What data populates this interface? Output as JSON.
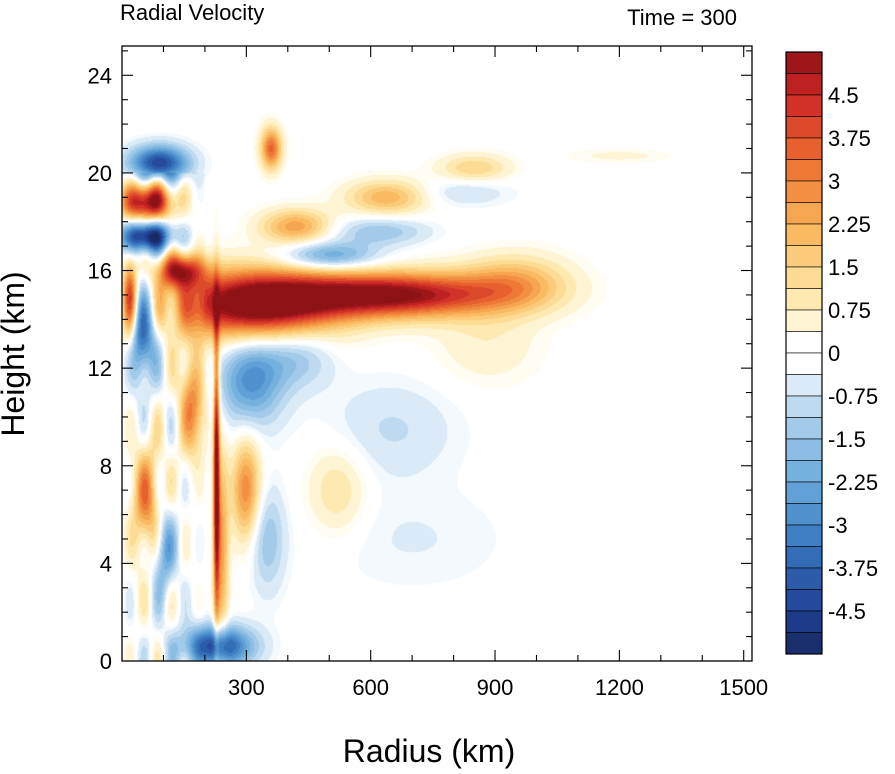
{
  "chart_data": {
    "type": "heatmap",
    "title_left": "Radial Velocity",
    "title_right": "Time = 300",
    "xlabel": "Radius (km)",
    "ylabel": "Height (km)",
    "xlim": [
      0,
      1520
    ],
    "ylim": [
      0,
      25.2
    ],
    "xticks": [
      300,
      600,
      900,
      1200,
      1500
    ],
    "yticks": [
      0,
      4,
      8,
      12,
      16,
      20,
      24
    ],
    "x_minor_step": 100,
    "y_minor_step": 1,
    "colorbar": {
      "min": -5.25,
      "max": 5.25,
      "step": 0.375,
      "labels": [
        "4.5",
        "3.75",
        "3",
        "2.25",
        "1.5",
        "0.75",
        "0",
        "-0.75",
        "-1.5",
        "-2.25",
        "-3",
        "-3.75",
        "-4.5"
      ],
      "label_values": [
        4.5,
        3.75,
        3,
        2.25,
        1.5,
        0.75,
        0,
        -0.75,
        -1.5,
        -2.25,
        -3,
        -3.75,
        -4.5
      ]
    },
    "features": [
      {
        "name": "upper-outflow-core",
        "x": 320,
        "y": 14.6,
        "value": 6.0,
        "sx": 140,
        "sy": 1.0
      },
      {
        "name": "upper-outflow-tail",
        "x": 650,
        "y": 15.0,
        "value": 5.5,
        "sx": 180,
        "sy": 0.65
      },
      {
        "name": "outflow-outer-edge",
        "x": 950,
        "y": 15.5,
        "value": 2.0,
        "sx": 90,
        "sy": 0.8
      },
      {
        "name": "outflow-shoulder",
        "x": 880,
        "y": 13.0,
        "value": 0.7,
        "sx": 90,
        "sy": 1.2
      },
      {
        "name": "inner-inflow-below-outflow",
        "x": 310,
        "y": 11.5,
        "value": -2.8,
        "sx": 55,
        "sy": 1.3
      },
      {
        "name": "inner-inflow-below-outflow-2",
        "x": 420,
        "y": 12.5,
        "value": -1.5,
        "sx": 60,
        "sy": 0.9
      },
      {
        "name": "core-red-top",
        "x": 60,
        "y": 18.8,
        "value": 5.5,
        "sx": 45,
        "sy": 0.55
      },
      {
        "name": "core-blue-top",
        "x": 60,
        "y": 17.4,
        "value": -5.5,
        "sx": 45,
        "sy": 0.45
      },
      {
        "name": "core-blue-upper",
        "x": 90,
        "y": 20.4,
        "value": -4.5,
        "sx": 50,
        "sy": 0.5
      },
      {
        "name": "core-red-band",
        "x": 140,
        "y": 16.0,
        "value": 4.5,
        "sx": 40,
        "sy": 0.5
      },
      {
        "name": "core-blue-mid",
        "x": 50,
        "y": 13.5,
        "value": -4.0,
        "sx": 22,
        "sy": 1.4
      },
      {
        "name": "core-red-mid",
        "x": 170,
        "y": 10.5,
        "value": 3.0,
        "sx": 22,
        "sy": 1.5
      },
      {
        "name": "core-red-left",
        "x": 20,
        "y": 14.8,
        "value": 4.0,
        "sx": 12,
        "sy": 1.2
      },
      {
        "name": "core-red-low",
        "x": 60,
        "y": 6.5,
        "value": 3.0,
        "sx": 25,
        "sy": 1.6
      },
      {
        "name": "core-blue-low",
        "x": 100,
        "y": 4.5,
        "value": -2.5,
        "sx": 20,
        "sy": 1.2
      },
      {
        "name": "eyewall-jet",
        "x": 228,
        "y": 8.0,
        "value": 5.5,
        "sx": 5,
        "sy": 4.0
      },
      {
        "name": "eyewall-red-low",
        "x": 240,
        "y": 4.5,
        "value": 2.5,
        "sx": 12,
        "sy": 3.0
      },
      {
        "name": "surface-inflow",
        "x": 230,
        "y": 0.6,
        "value": -4.5,
        "sx": 60,
        "sy": 0.6
      },
      {
        "name": "near-core-red",
        "x": 300,
        "y": 7.0,
        "value": 3.0,
        "sx": 25,
        "sy": 1.5
      },
      {
        "name": "near-core-blue",
        "x": 350,
        "y": 5.0,
        "value": -1.5,
        "sx": 30,
        "sy": 1.5
      },
      {
        "name": "mid-warm-band",
        "x": 520,
        "y": 7.0,
        "value": 1.2,
        "sx": 50,
        "sy": 1.3
      },
      {
        "name": "mid-cool-band",
        "x": 650,
        "y": 9.5,
        "value": -0.8,
        "sx": 110,
        "sy": 1.4
      },
      {
        "name": "lower-cool-band",
        "x": 700,
        "y": 5.0,
        "value": -0.4,
        "sx": 160,
        "sy": 1.5
      },
      {
        "name": "upper-warm-arm-1",
        "x": 420,
        "y": 17.8,
        "value": 2.5,
        "sx": 60,
        "sy": 0.5
      },
      {
        "name": "upper-warm-arm-2",
        "x": 640,
        "y": 19.0,
        "value": 2.2,
        "sx": 70,
        "sy": 0.5
      },
      {
        "name": "upper-warm-arm-3",
        "x": 850,
        "y": 20.2,
        "value": 1.5,
        "sx": 60,
        "sy": 0.4
      },
      {
        "name": "upper-cool-arm-1",
        "x": 500,
        "y": 16.6,
        "value": -2.5,
        "sx": 80,
        "sy": 0.4
      },
      {
        "name": "upper-cool-arm-2",
        "x": 620,
        "y": 17.6,
        "value": -1.5,
        "sx": 80,
        "sy": 0.4
      },
      {
        "name": "upper-cool-arm-3",
        "x": 820,
        "y": 19.2,
        "value": -0.8,
        "sx": 80,
        "sy": 0.4
      },
      {
        "name": "upper-red-spike",
        "x": 360,
        "y": 21.0,
        "value": 3.5,
        "sx": 18,
        "sy": 0.6
      },
      {
        "name": "far-field-warm",
        "x": 1200,
        "y": 20.7,
        "value": 0.5,
        "sx": 90,
        "sy": 0.2
      }
    ]
  }
}
